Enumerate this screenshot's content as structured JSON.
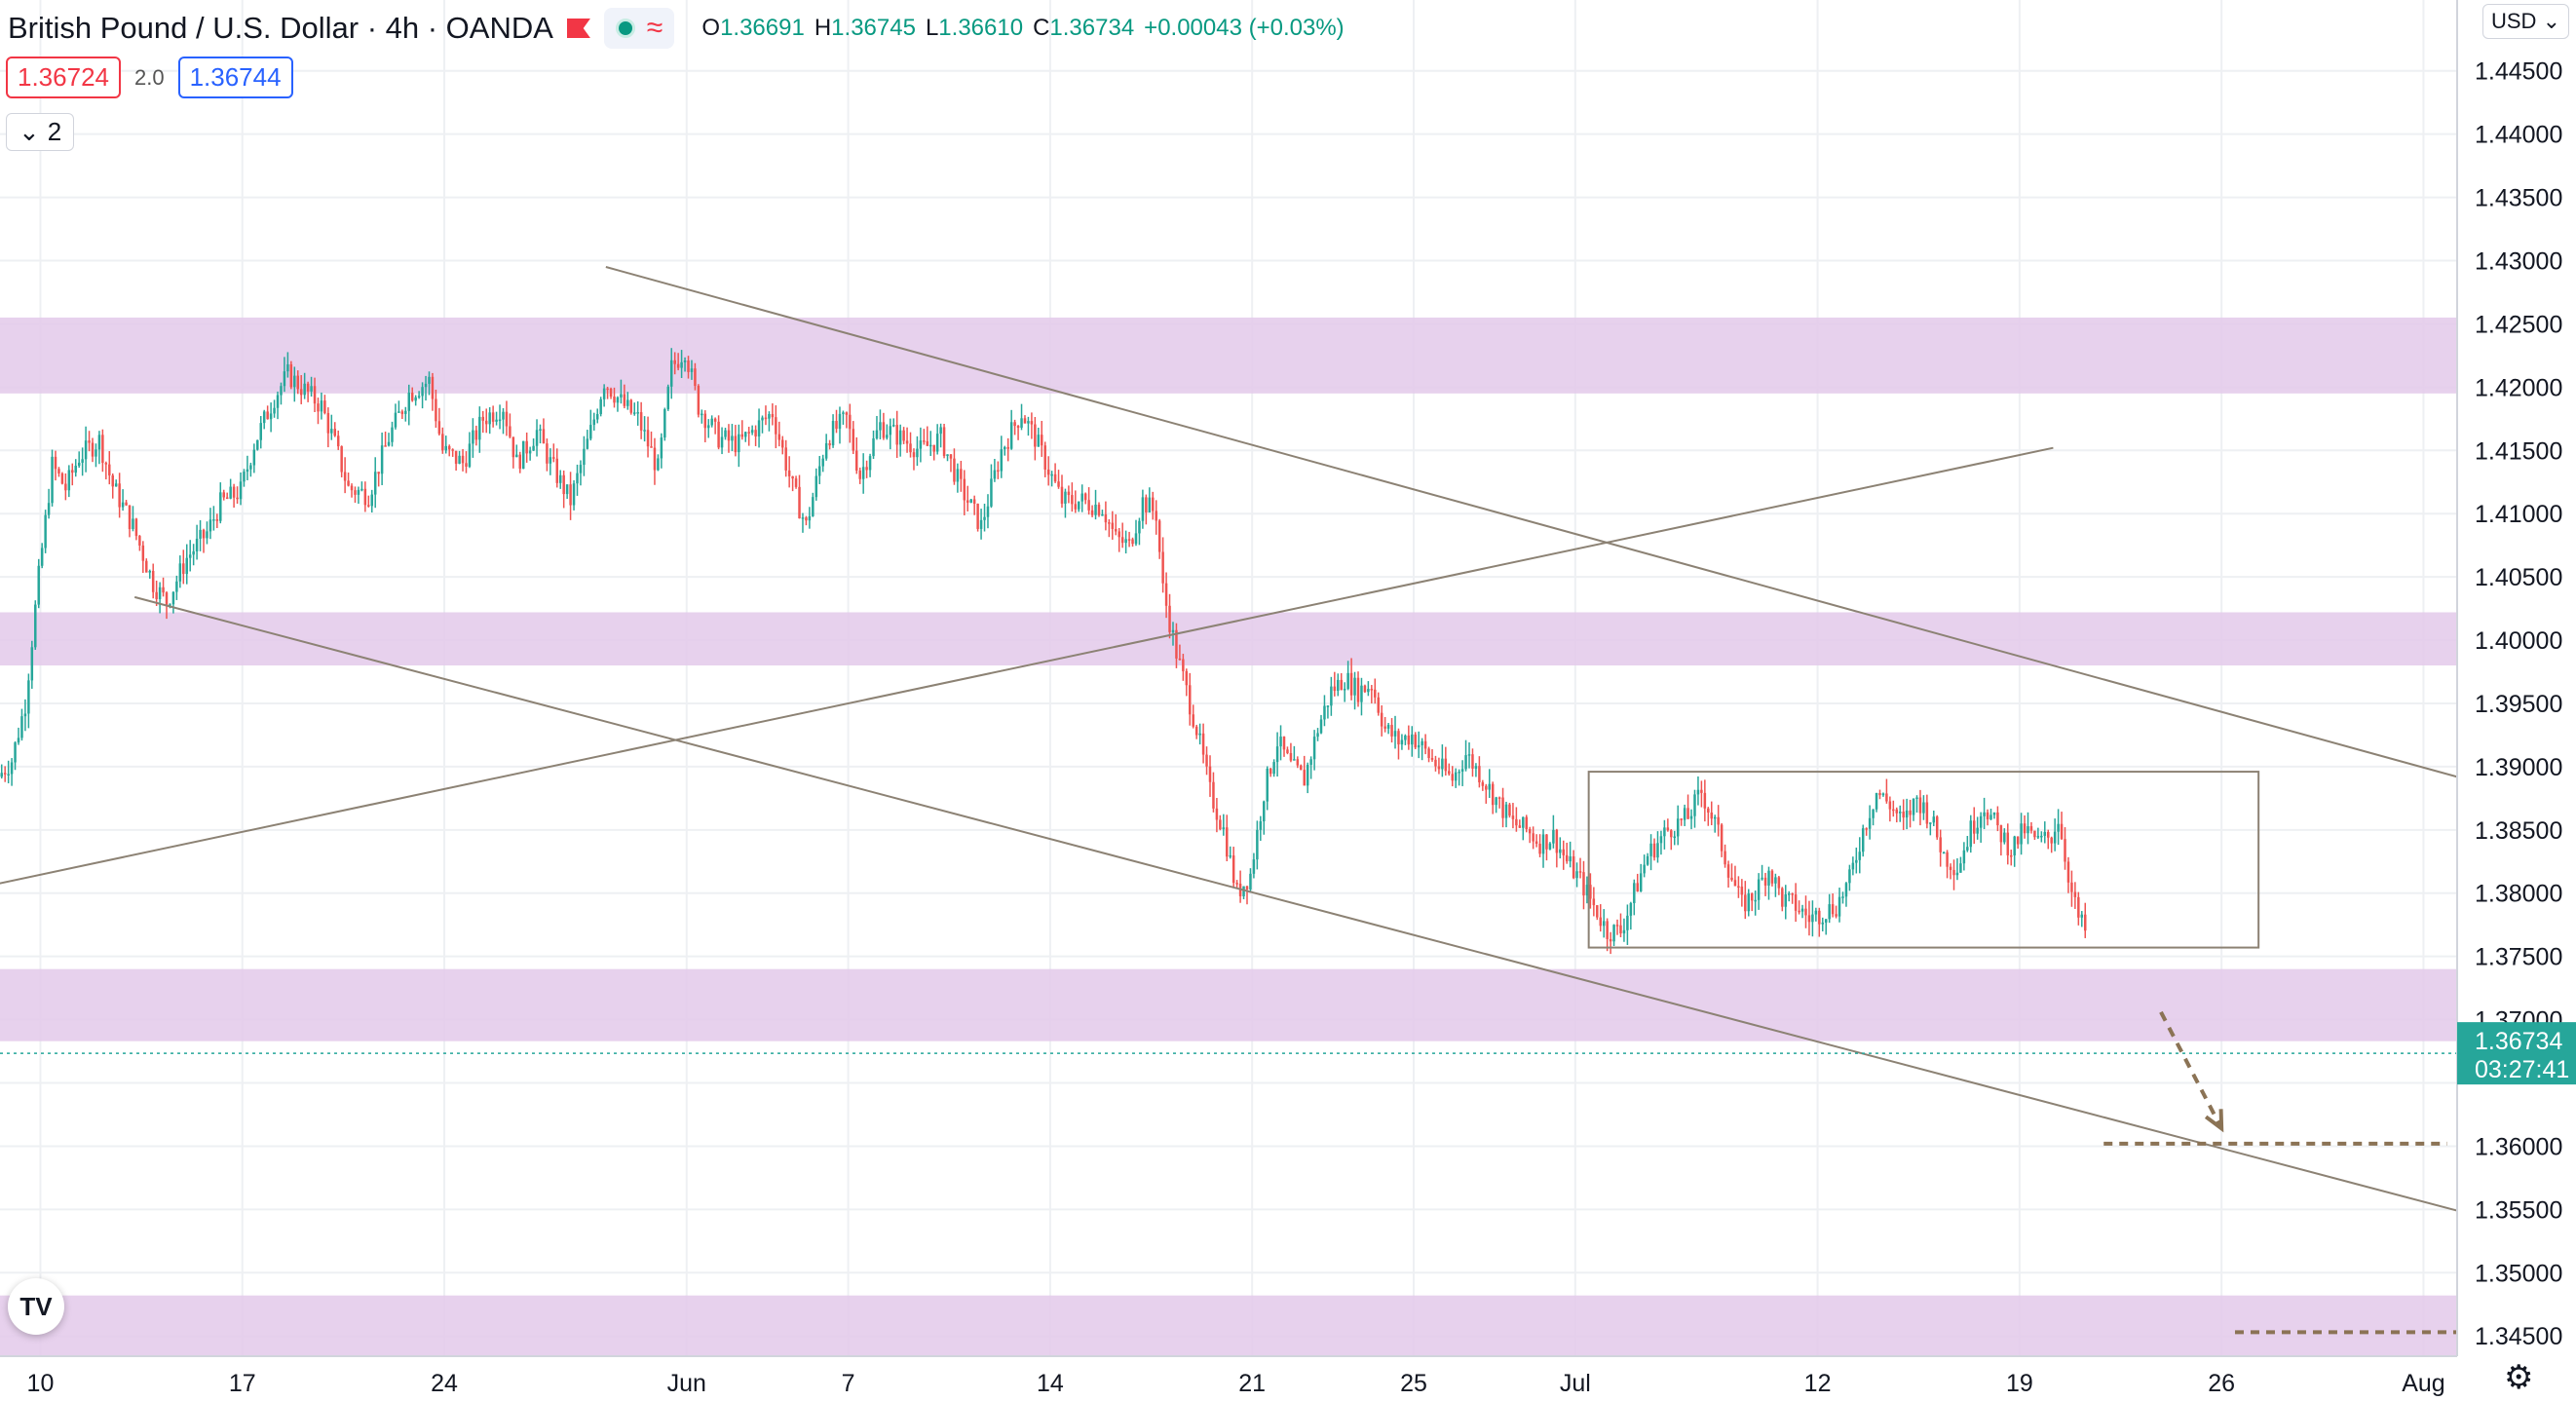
{
  "header": {
    "title": "British Pound / U.S. Dollar · 4h · OANDA",
    "ohlc": {
      "o_label": "O",
      "o": "1.36691",
      "h_label": "H",
      "h": "1.36745",
      "l_label": "L",
      "l": "1.36610",
      "c_label": "C",
      "c": "1.36734",
      "change": "+0.00043 (+0.03%)"
    },
    "sell_price": "1.36724",
    "spread": "2.0",
    "buy_price": "1.36744",
    "collapse_count": "2",
    "currency": "USD",
    "currency_icon": "chevron-down-icon"
  },
  "colors": {
    "up": "#26a69a",
    "down": "#ef5350",
    "zone": "#e3c9ea",
    "trendline": "#8c8274",
    "dash": "#8b7355",
    "grid": "#eef0f3",
    "price_tag": "#26a69a"
  },
  "chart_data": {
    "type": "candlestick",
    "instrument": "British Pound / U.S. Dollar",
    "timeframe": "4h",
    "broker": "OANDA",
    "ylim": [
      1.3434,
      1.4506
    ],
    "y_ticks": [
      1.345,
      1.35,
      1.355,
      1.36,
      1.365,
      1.37,
      1.375,
      1.38,
      1.385,
      1.39,
      1.395,
      1.4,
      1.405,
      1.41,
      1.415,
      1.42,
      1.425,
      1.43,
      1.435,
      1.44,
      1.445
    ],
    "y_tick_labels": [
      "1.34500",
      "1.35000",
      "1.35500",
      "1.36000",
      "",
      "1.37000",
      "1.37500",
      "1.38000",
      "1.38500",
      "1.39000",
      "1.39500",
      "1.40000",
      "1.40500",
      "1.41000",
      "1.41500",
      "1.42000",
      "1.42500",
      "1.43000",
      "1.43500",
      "1.44000",
      "1.44500"
    ],
    "x_ticks": [
      "10",
      "17",
      "24",
      "Jun",
      "7",
      "14",
      "21",
      "25",
      "Jul",
      "12",
      "19",
      "26",
      "Aug"
    ],
    "x_tick_bars": [
      12,
      72,
      132,
      204,
      252,
      312,
      372,
      420,
      468,
      540,
      600,
      660,
      720
    ],
    "bar_count": 620,
    "x_span_bars": 730,
    "current_price": "1.36734",
    "current_value": 1.36734,
    "countdown": "03:27:41",
    "close_path": [
      [
        0,
        1.3892
      ],
      [
        4,
        1.3905
      ],
      [
        8,
        1.395
      ],
      [
        12,
        1.405
      ],
      [
        16,
        1.4138
      ],
      [
        20,
        1.412
      ],
      [
        24,
        1.4145
      ],
      [
        30,
        1.4158
      ],
      [
        34,
        1.4122
      ],
      [
        40,
        1.409
      ],
      [
        46,
        1.4045
      ],
      [
        50,
        1.403
      ],
      [
        56,
        1.4065
      ],
      [
        62,
        1.4085
      ],
      [
        66,
        1.4108
      ],
      [
        72,
        1.4118
      ],
      [
        76,
        1.4155
      ],
      [
        82,
        1.4192
      ],
      [
        86,
        1.421
      ],
      [
        92,
        1.4195
      ],
      [
        96,
        1.4185
      ],
      [
        100,
        1.4155
      ],
      [
        104,
        1.412
      ],
      [
        110,
        1.4115
      ],
      [
        116,
        1.416
      ],
      [
        122,
        1.4195
      ],
      [
        128,
        1.4205
      ],
      [
        132,
        1.415
      ],
      [
        138,
        1.414
      ],
      [
        144,
        1.4175
      ],
      [
        150,
        1.4185
      ],
      [
        154,
        1.414
      ],
      [
        160,
        1.4165
      ],
      [
        164,
        1.414
      ],
      [
        170,
        1.411
      ],
      [
        176,
        1.4165
      ],
      [
        180,
        1.4205
      ],
      [
        186,
        1.4185
      ],
      [
        190,
        1.4175
      ],
      [
        196,
        1.4135
      ],
      [
        200,
        1.4215
      ],
      [
        204,
        1.423
      ],
      [
        208,
        1.4185
      ],
      [
        214,
        1.416
      ],
      [
        220,
        1.4155
      ],
      [
        226,
        1.417
      ],
      [
        230,
        1.418
      ],
      [
        236,
        1.412
      ],
      [
        240,
        1.409
      ],
      [
        246,
        1.416
      ],
      [
        252,
        1.4175
      ],
      [
        256,
        1.413
      ],
      [
        262,
        1.417
      ],
      [
        268,
        1.416
      ],
      [
        274,
        1.415
      ],
      [
        280,
        1.416
      ],
      [
        286,
        1.412
      ],
      [
        292,
        1.409
      ],
      [
        298,
        1.415
      ],
      [
        304,
        1.418
      ],
      [
        308,
        1.416
      ],
      [
        312,
        1.4135
      ],
      [
        316,
        1.411
      ],
      [
        322,
        1.411
      ],
      [
        328,
        1.4105
      ],
      [
        332,
        1.408
      ],
      [
        336,
        1.4075
      ],
      [
        340,
        1.411
      ],
      [
        344,
        1.41
      ],
      [
        346,
        1.404
      ],
      [
        350,
        1.399
      ],
      [
        356,
        1.393
      ],
      [
        360,
        1.388
      ],
      [
        364,
        1.385
      ],
      [
        368,
        1.38
      ],
      [
        372,
        1.3815
      ],
      [
        376,
        1.388
      ],
      [
        380,
        1.392
      ],
      [
        384,
        1.39
      ],
      [
        388,
        1.389
      ],
      [
        392,
        1.393
      ],
      [
        396,
        1.396
      ],
      [
        400,
        1.397
      ],
      [
        404,
        1.396
      ],
      [
        408,
        1.3965
      ],
      [
        412,
        1.393
      ],
      [
        416,
        1.392
      ],
      [
        420,
        1.3925
      ],
      [
        426,
        1.3905
      ],
      [
        432,
        1.389
      ],
      [
        436,
        1.391
      ],
      [
        440,
        1.3895
      ],
      [
        446,
        1.387
      ],
      [
        450,
        1.3855
      ],
      [
        454,
        1.385
      ],
      [
        458,
        1.384
      ],
      [
        462,
        1.3845
      ],
      [
        466,
        1.3825
      ],
      [
        470,
        1.381
      ],
      [
        474,
        1.379
      ],
      [
        478,
        1.377
      ],
      [
        482,
        1.377
      ],
      [
        486,
        1.38
      ],
      [
        490,
        1.383
      ],
      [
        496,
        1.385
      ],
      [
        502,
        1.386
      ],
      [
        506,
        1.388
      ],
      [
        510,
        1.3855
      ],
      [
        514,
        1.382
      ],
      [
        518,
        1.379
      ],
      [
        522,
        1.38
      ],
      [
        526,
        1.382
      ],
      [
        530,
        1.3795
      ],
      [
        534,
        1.379
      ],
      [
        538,
        1.378
      ],
      [
        542,
        1.3785
      ],
      [
        546,
        1.379
      ],
      [
        550,
        1.381
      ],
      [
        554,
        1.385
      ],
      [
        558,
        1.388
      ],
      [
        562,
        1.387
      ],
      [
        566,
        1.3855
      ],
      [
        570,
        1.3875
      ],
      [
        574,
        1.386
      ],
      [
        578,
        1.383
      ],
      [
        582,
        1.382
      ],
      [
        586,
        1.385
      ],
      [
        590,
        1.387
      ],
      [
        594,
        1.385
      ],
      [
        598,
        1.3835
      ],
      [
        602,
        1.385
      ],
      [
        606,
        1.384
      ],
      [
        610,
        1.3845
      ],
      [
        612,
        1.386
      ],
      [
        614,
        1.383
      ],
      [
        616,
        1.38
      ],
      [
        618,
        1.378
      ],
      [
        620,
        1.377
      ],
      [
        622,
        1.376
      ],
      [
        624,
        1.374
      ],
      [
        626,
        1.372
      ],
      [
        628,
        1.37
      ],
      [
        630,
        1.368
      ],
      [
        632,
        1.367
      ],
      [
        636,
        1.367
      ],
      [
        640,
        1.3673
      ]
    ],
    "zones": [
      {
        "low": 1.4195,
        "high": 1.4255
      },
      {
        "low": 1.398,
        "high": 1.4022
      },
      {
        "low": 1.3683,
        "high": 1.374
      },
      {
        "low": 1.3434,
        "high": 1.3482
      }
    ],
    "trendlines": [
      {
        "from": [
          180,
          1.4295
        ],
        "to": [
          760,
          1.387
        ]
      },
      {
        "from": [
          40,
          1.4034
        ],
        "to": [
          750,
          1.3535
        ]
      },
      {
        "from": [
          -5,
          1.3805
        ],
        "to": [
          610,
          1.4152
        ]
      }
    ],
    "range_box": {
      "from_bar": 472,
      "to_bar": 671,
      "low": 1.3757,
      "high": 1.3896
    },
    "projection_arrow": {
      "from": [
        642,
        1.3706
      ],
      "to": [
        660,
        1.3614
      ]
    },
    "target_levels": [
      {
        "value": 1.3602,
        "from_bar": 625,
        "to_bar": 727
      },
      {
        "value": 1.3453,
        "from_bar": 664,
        "to_bar": 762
      }
    ]
  }
}
